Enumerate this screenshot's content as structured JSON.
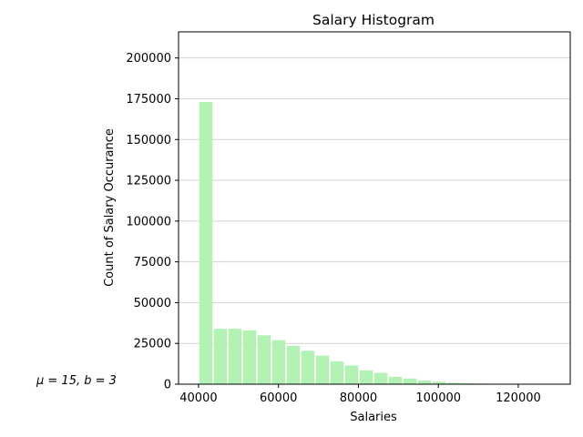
{
  "chart_data": {
    "type": "bar",
    "title": "Salary Histogram",
    "xlabel": "Salaries",
    "ylabel": "Count of Salary Occurance",
    "annotation": "μ = 15, b = 3",
    "xlim": [
      35000,
      133000
    ],
    "ylim": [
      0,
      216000
    ],
    "xticks": [
      40000,
      60000,
      80000,
      100000,
      120000
    ],
    "yticks": [
      0,
      25000,
      50000,
      75000,
      100000,
      125000,
      150000,
      175000,
      200000
    ],
    "grid": "y",
    "bar_color": "#b2f2b2",
    "bin_width": 3650,
    "bin_starts": [
      40000,
      43650,
      47300,
      50950,
      54600,
      58250,
      61900,
      65550,
      69200,
      72850,
      76500,
      80150,
      83800,
      87450,
      91100,
      94750,
      98400,
      102050,
      105700,
      109350,
      113000,
      116650,
      120300,
      123950,
      127600
    ],
    "values": [
      173000,
      34000,
      34000,
      33000,
      30000,
      27000,
      23500,
      20500,
      17500,
      14000,
      11500,
      8500,
      7000,
      4500,
      3500,
      2200,
      1500,
      900,
      600,
      400,
      250,
      150,
      100,
      60,
      40
    ]
  }
}
